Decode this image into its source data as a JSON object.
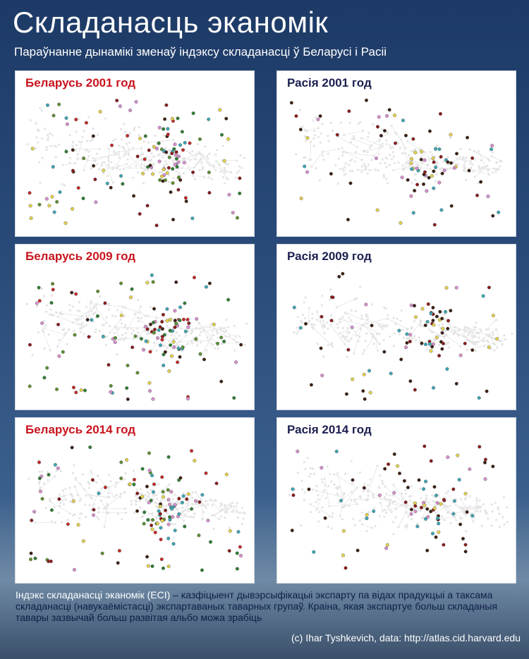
{
  "header": {
    "title": "Складанасць эканомік",
    "subtitle": "Параўнанне дынамікі зменаў індэксу складанасці ў Беларусі і Расіі"
  },
  "panels": [
    {
      "label": "Беларусь 2001 год",
      "country": "belarus"
    },
    {
      "label": "Расія 2001 год",
      "country": "russia"
    },
    {
      "label": "Беларусь 2009 год",
      "country": "belarus"
    },
    {
      "label": "Расія 2009 год",
      "country": "russia"
    },
    {
      "label": "Беларусь 2014 год",
      "country": "belarus"
    },
    {
      "label": "Расія 2014 год",
      "country": "russia"
    }
  ],
  "footer": {
    "term": "Індэкс складанасці эканомік (ECI)",
    "definition": " – казфіцыент дывэрсыфікацыі экспарту па відах прадукцыі а таксама складанасці (навукаёмістасці) экспартаваных таварных групаў.  Краіна, якая экспартуе больш складаныя тавары зазвычай больш развітая альбо можа зрабіць",
    "credit": "(c) Ihar Tyshkevich, data: http://atlas.cid.harvard.edu"
  }
}
